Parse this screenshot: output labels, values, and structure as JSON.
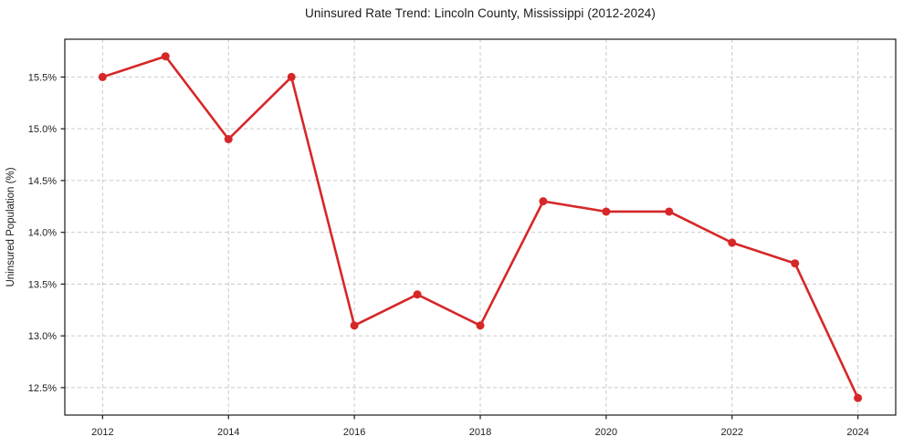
{
  "chart_data": {
    "type": "line",
    "title": "Uninsured Rate Trend: Lincoln County, Mississippi (2012-2024)",
    "xlabel": "",
    "ylabel": "Uninsured Population (%)",
    "x": [
      2012,
      2013,
      2014,
      2015,
      2016,
      2017,
      2018,
      2019,
      2020,
      2021,
      2022,
      2023,
      2024
    ],
    "series": [
      {
        "name": "Uninsured Rate",
        "values": [
          15.5,
          15.7,
          14.9,
          15.5,
          13.1,
          13.4,
          13.1,
          14.3,
          14.2,
          14.2,
          13.9,
          13.7,
          12.4
        ]
      }
    ],
    "xlim": [
      2011.4,
      2024.6
    ],
    "ylim": [
      12.235,
      15.865
    ],
    "xticks": [
      2012,
      2014,
      2016,
      2018,
      2020,
      2022,
      2024
    ],
    "xtick_labels": [
      "2012",
      "2014",
      "2016",
      "2018",
      "2020",
      "2022",
      "2024"
    ],
    "yticks": [
      12.5,
      13.0,
      13.5,
      14.0,
      14.5,
      15.0,
      15.5
    ],
    "ytick_labels": [
      "12.5%",
      "13.0%",
      "13.5%",
      "14.0%",
      "14.5%",
      "15.0%",
      "15.5%"
    ],
    "grid": true,
    "legend": null,
    "marker": "circle",
    "colors": {
      "line": "#d62728",
      "marker": "#d62728",
      "grid": "#c9c9c9",
      "spine": "#1a1a1a",
      "tick_text": "#222222",
      "background": "#ffffff"
    }
  }
}
